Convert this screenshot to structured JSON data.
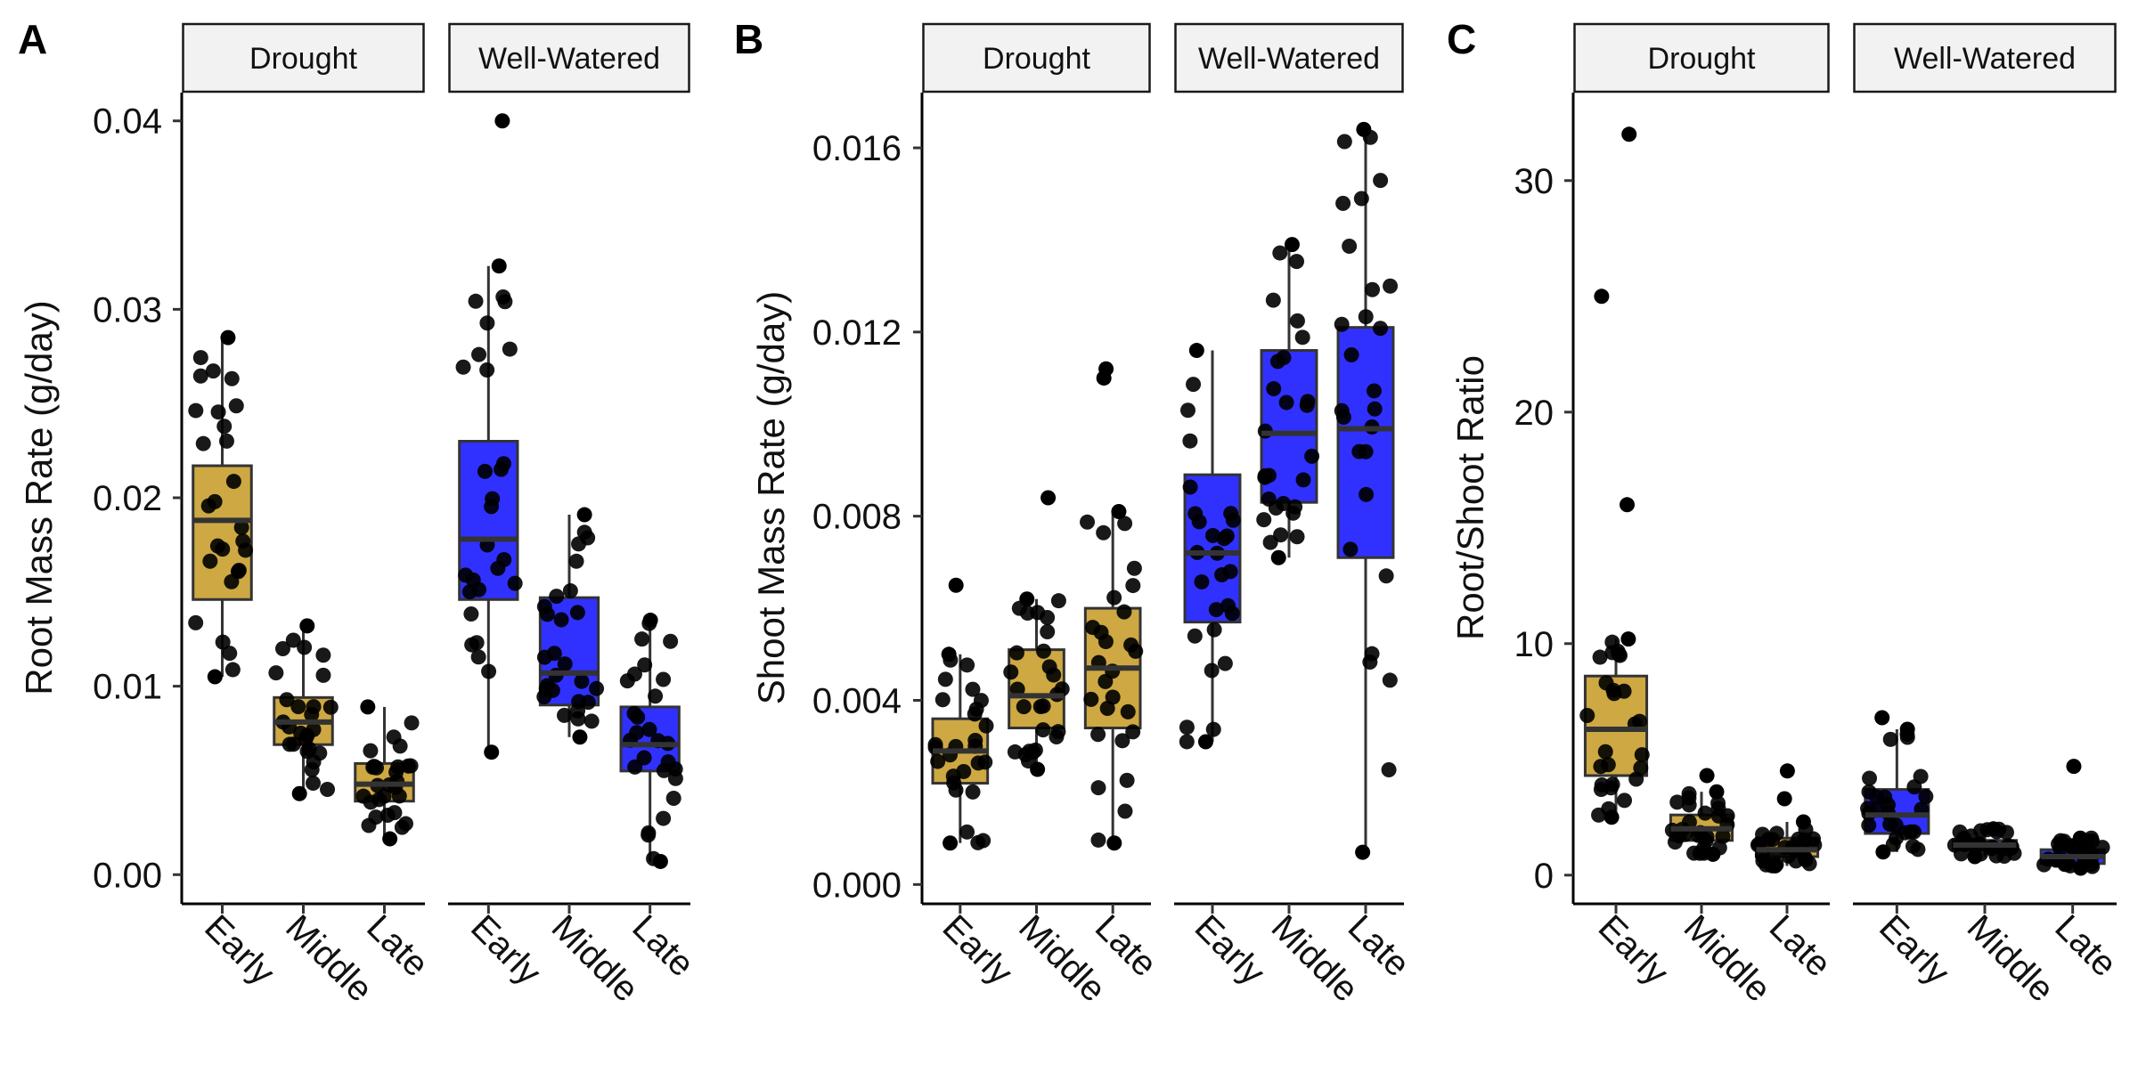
{
  "figure": {
    "panels": [
      {
        "id": "A",
        "letter": "A",
        "ylabel": "Root Mass Rate (g/day)",
        "ylim": [
          -0.0015,
          0.0415
        ],
        "yticks": [
          0.0,
          0.01,
          0.02,
          0.03,
          0.04
        ],
        "ytick_labels": [
          "0.00",
          "0.01",
          "0.02",
          "0.03",
          "0.04"
        ]
      },
      {
        "id": "B",
        "letter": "B",
        "ylabel": "Shoot Mass Rate (g/day)",
        "ylim": [
          -0.0004,
          0.0172
        ],
        "yticks": [
          0.0,
          0.004,
          0.008,
          0.012,
          0.016
        ],
        "ytick_labels": [
          "0.000",
          "0.004",
          "0.008",
          "0.012",
          "0.016"
        ]
      },
      {
        "id": "C",
        "letter": "C",
        "ylabel": "Root/Shoot Ratio",
        "ylim": [
          -1.2,
          33.8
        ],
        "yticks": [
          0,
          10,
          20,
          30
        ],
        "ytick_labels": [
          "0",
          "10",
          "20",
          "30"
        ]
      }
    ],
    "facets": [
      "Drought",
      "Well-Watered"
    ],
    "categories": [
      "Early",
      "Middle",
      "Late"
    ]
  },
  "chart_data": [
    {
      "type": "box",
      "panel": "A",
      "ylabel": "Root Mass Rate (g/day)",
      "facets": [
        "Drought",
        "Well-Watered"
      ],
      "categories": [
        "Early",
        "Middle",
        "Late"
      ],
      "colors": {
        "Drought": "#C9A133",
        "Well-Watered": "#1F1FFF"
      },
      "boxes": {
        "Drought": [
          {
            "q1": 0.0146,
            "median": 0.0188,
            "q3": 0.0217,
            "whislo": 0.0105,
            "whishi": 0.0285,
            "outliers": []
          },
          {
            "q1": 0.0069,
            "median": 0.0081,
            "q3": 0.0094,
            "whislo": 0.0043,
            "whishi": 0.0132,
            "outliers": []
          },
          {
            "q1": 0.0039,
            "median": 0.0048,
            "q3": 0.0059,
            "whislo": 0.0019,
            "whishi": 0.0089,
            "outliers": []
          }
        ],
        "Well-Watered": [
          {
            "q1": 0.0146,
            "median": 0.0178,
            "q3": 0.023,
            "whislo": 0.0065,
            "whishi": 0.0323,
            "outliers": [
              0.04
            ]
          },
          {
            "q1": 0.009,
            "median": 0.0107,
            "q3": 0.0147,
            "whislo": 0.0073,
            "whishi": 0.0191,
            "outliers": []
          },
          {
            "q1": 0.0055,
            "median": 0.0069,
            "q3": 0.0089,
            "whislo": 0.0007,
            "whishi": 0.0135,
            "outliers": []
          }
        ]
      }
    },
    {
      "type": "box",
      "panel": "B",
      "ylabel": "Shoot Mass Rate (g/day)",
      "facets": [
        "Drought",
        "Well-Watered"
      ],
      "categories": [
        "Early",
        "Middle",
        "Late"
      ],
      "colors": {
        "Drought": "#C9A133",
        "Well-Watered": "#1F1FFF"
      },
      "boxes": {
        "Drought": [
          {
            "q1": 0.0022,
            "median": 0.0029,
            "q3": 0.0036,
            "whislo": 0.0009,
            "whishi": 0.005,
            "outliers": [
              0.0065
            ]
          },
          {
            "q1": 0.0034,
            "median": 0.0041,
            "q3": 0.0051,
            "whislo": 0.0025,
            "whishi": 0.0062,
            "outliers": [
              0.0084
            ]
          },
          {
            "q1": 0.0034,
            "median": 0.0047,
            "q3": 0.006,
            "whislo": 0.0009,
            "whishi": 0.0081,
            "outliers": [
              0.011,
              0.0112
            ]
          }
        ],
        "Well-Watered": [
          {
            "q1": 0.0057,
            "median": 0.0072,
            "q3": 0.0089,
            "whislo": 0.0031,
            "whishi": 0.0116,
            "outliers": []
          },
          {
            "q1": 0.0083,
            "median": 0.0098,
            "q3": 0.0116,
            "whislo": 0.0071,
            "whishi": 0.0139,
            "outliers": []
          },
          {
            "q1": 0.0071,
            "median": 0.0099,
            "q3": 0.0121,
            "whislo": 0.0007,
            "whishi": 0.0164,
            "outliers": []
          }
        ]
      }
    },
    {
      "type": "box",
      "panel": "C",
      "ylabel": "Root/Shoot Ratio",
      "facets": [
        "Drought",
        "Well-Watered"
      ],
      "categories": [
        "Early",
        "Middle",
        "Late"
      ],
      "colors": {
        "Drought": "#C9A133",
        "Well-Watered": "#1F1FFF"
      },
      "boxes": {
        "Drought": [
          {
            "q1": 4.3,
            "median": 6.3,
            "q3": 8.6,
            "whislo": 2.5,
            "whishi": 10.2,
            "outliers": [
              16.0,
              25.0,
              32.0
            ]
          },
          {
            "q1": 1.5,
            "median": 2.0,
            "q3": 2.6,
            "whislo": 0.9,
            "whishi": 3.6,
            "outliers": [
              4.3
            ]
          },
          {
            "q1": 0.8,
            "median": 1.1,
            "q3": 1.6,
            "whislo": 0.4,
            "whishi": 2.3,
            "outliers": [
              3.3,
              4.5
            ]
          }
        ],
        "Well-Watered": [
          {
            "q1": 1.8,
            "median": 2.6,
            "q3": 3.7,
            "whislo": 1.0,
            "whishi": 6.3,
            "outliers": [
              6.8
            ]
          },
          {
            "q1": 1.1,
            "median": 1.3,
            "q3": 1.5,
            "whislo": 0.8,
            "whishi": 2.0,
            "outliers": []
          },
          {
            "q1": 0.5,
            "median": 0.8,
            "q3": 1.1,
            "whislo": 0.3,
            "whishi": 1.6,
            "outliers": [
              4.7
            ]
          }
        ]
      }
    }
  ]
}
